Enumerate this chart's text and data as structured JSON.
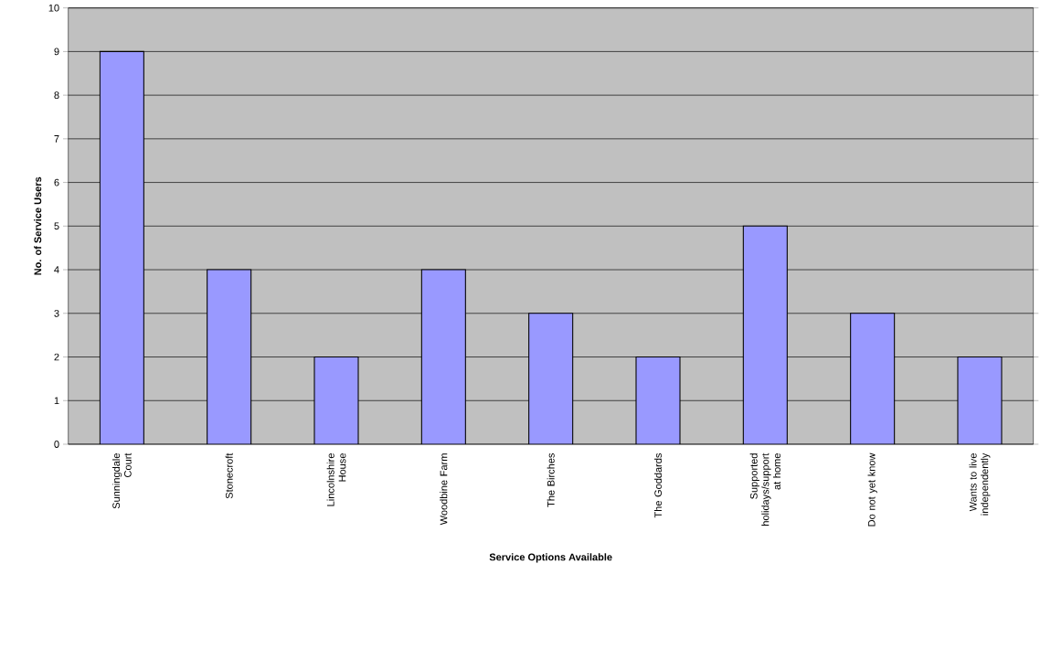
{
  "chart_data": {
    "type": "bar",
    "xlabel": "Service Options Available",
    "ylabel": "No. of Service Users",
    "categories": [
      "Sunningdale Court",
      "Stonecroft",
      "Lincolnshire House",
      "Woodbine Farm",
      "The Birches",
      "The Goddards",
      "Supported holidays/support at home",
      "Do not yet know",
      "Wants to live independently"
    ],
    "values": [
      9,
      4,
      2,
      4,
      3,
      2,
      5,
      3,
      2
    ],
    "color": "#9999ff",
    "ylim": [
      0,
      10
    ],
    "yticks": [
      0,
      1,
      2,
      3,
      4,
      5,
      6,
      7,
      8,
      9,
      10
    ],
    "grid": "y"
  }
}
